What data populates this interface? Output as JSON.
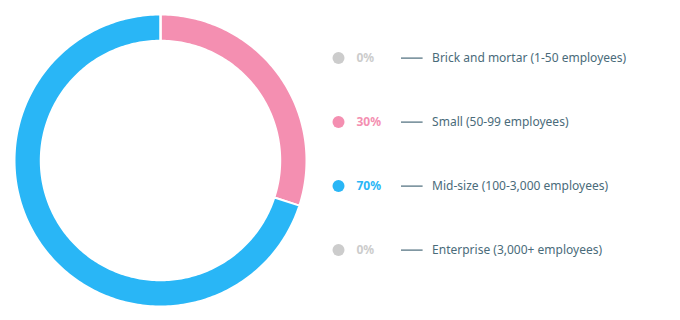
{
  "chart_data": {
    "type": "pie",
    "categories": [
      "Brick and mortar (1-50 employees)",
      "Small (50-99 employees)",
      "Mid-size (100-3,000 employees)",
      "Enterprise (3,000+ employees)"
    ],
    "values": [
      0.001,
      30,
      70,
      0.001
    ],
    "value_labels": [
      "0%",
      "30%",
      "70%",
      "0%"
    ],
    "colors": [
      "#cccccc",
      "#f48fb1",
      "#29b6f6",
      "#cccccc"
    ],
    "legend": "right"
  }
}
